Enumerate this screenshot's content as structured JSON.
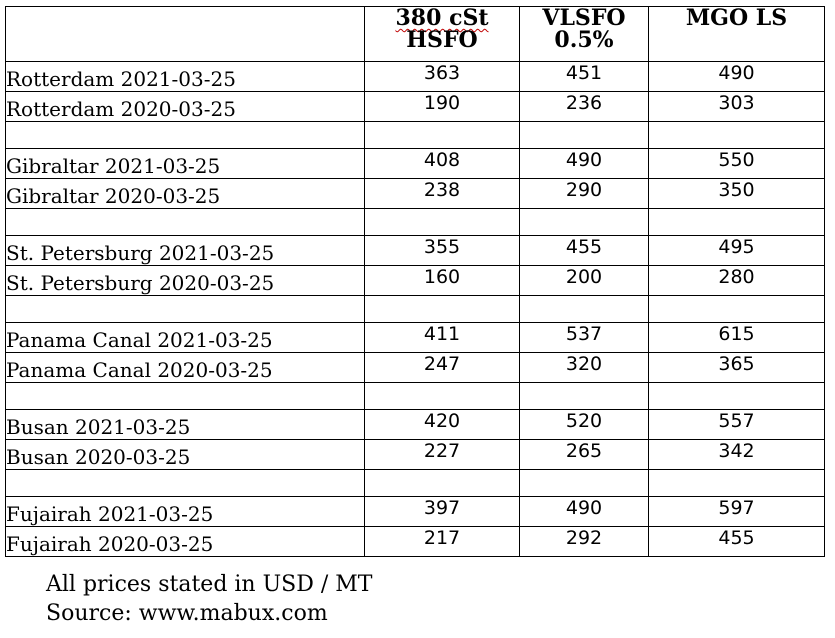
{
  "table": {
    "headers": {
      "corner": "",
      "hsfo_line1": "380 cSt",
      "hsfo_line2": "HSFO",
      "vlsfo": "VLSFO\n0.5%",
      "mgo": "MGO LS"
    },
    "rows": [
      {
        "type": "data",
        "label": "Rotterdam 2021-03-25",
        "hsfo": "363",
        "vlsfo": "451",
        "mgo": "490"
      },
      {
        "type": "data",
        "label": "Rotterdam 2020-03-25",
        "hsfo": "190",
        "vlsfo": "236",
        "mgo": "303"
      },
      {
        "type": "spacer"
      },
      {
        "type": "data",
        "label": "Gibraltar 2021-03-25",
        "hsfo": "408",
        "vlsfo": "490",
        "mgo": "550"
      },
      {
        "type": "data",
        "label": "Gibraltar 2020-03-25",
        "hsfo": "238",
        "vlsfo": "290",
        "mgo": "350"
      },
      {
        "type": "spacer"
      },
      {
        "type": "data",
        "label": "St. Petersburg 2021-03-25",
        "hsfo": "355",
        "vlsfo": "455",
        "mgo": "495"
      },
      {
        "type": "data",
        "label": "St. Petersburg 2020-03-25",
        "hsfo": "160",
        "vlsfo": "200",
        "mgo": "280"
      },
      {
        "type": "spacer"
      },
      {
        "type": "data",
        "label": "Panama Canal 2021-03-25",
        "hsfo": "411",
        "vlsfo": "537",
        "mgo": "615"
      },
      {
        "type": "data",
        "label": "Panama Canal 2020-03-25",
        "hsfo": "247",
        "vlsfo": "320",
        "mgo": "365"
      },
      {
        "type": "spacer"
      },
      {
        "type": "data",
        "label": "Busan 2021-03-25",
        "hsfo": "420",
        "vlsfo": "520",
        "mgo": "557"
      },
      {
        "type": "data",
        "label": "Busan 2020-03-25",
        "hsfo": "227",
        "vlsfo": "265",
        "mgo": "342"
      },
      {
        "type": "spacer"
      },
      {
        "type": "data",
        "label": "Fujairah 2021-03-25",
        "hsfo": "397",
        "vlsfo": "490",
        "mgo": "597"
      },
      {
        "type": "data",
        "label": "Fujairah 2020-03-25",
        "hsfo": "217",
        "vlsfo": "292",
        "mgo": "455"
      }
    ]
  },
  "notes": {
    "currency": "All prices stated in USD / MT",
    "source": "Source: www.mabux.com"
  }
}
